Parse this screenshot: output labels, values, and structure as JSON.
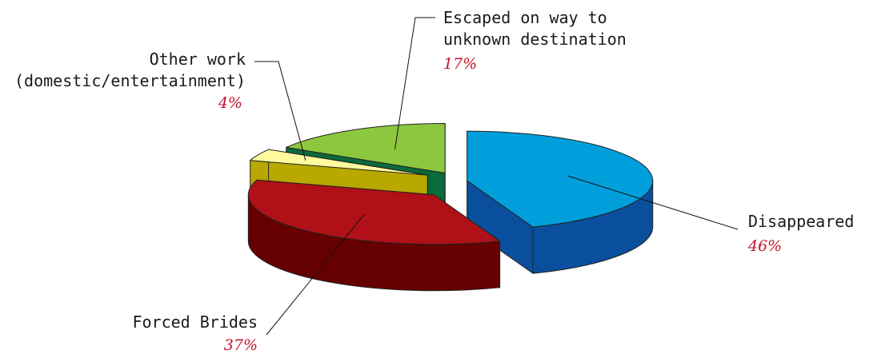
{
  "chart_data": {
    "type": "pie",
    "style": "3d-exploded",
    "slices": [
      {
        "label": "Disappeared",
        "value": 46,
        "value_label": "46%",
        "color": "#009fdc",
        "side_color": "#0a4f9e"
      },
      {
        "label": "Forced Brides",
        "value": 37,
        "value_label": "37%",
        "color": "#b01018",
        "side_color": "#660000"
      },
      {
        "label": "Other work (domestic/entertainment)",
        "label_lines": [
          "Other work",
          "(domestic/entertainment)"
        ],
        "value": 4,
        "value_label": "4%",
        "color": "#fffa9e",
        "side_color": "#b8a800"
      },
      {
        "label": "Escaped on way to unknown destination",
        "label_lines": [
          "Escaped on way to",
          "unknown destination"
        ],
        "value": 17,
        "value_label": "17%",
        "color": "#8dc63f",
        "side_color": "#0b6a3a"
      }
    ],
    "percent_color": "#c0152a"
  }
}
